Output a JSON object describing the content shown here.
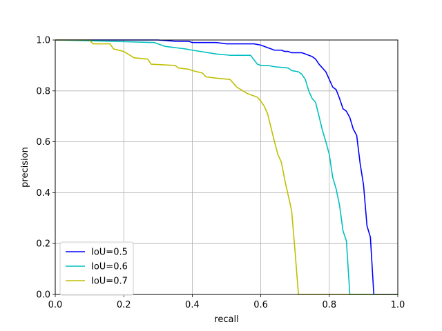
{
  "chart_data": {
    "type": "line",
    "title": "",
    "xlabel": "recall",
    "ylabel": "precision",
    "xlim": [
      0.0,
      1.0
    ],
    "ylim": [
      0.0,
      1.0
    ],
    "xticks": [
      "0.0",
      "0.2",
      "0.4",
      "0.6",
      "0.8",
      "1.0"
    ],
    "yticks": [
      "0.0",
      "0.2",
      "0.4",
      "0.6",
      "0.8",
      "1.0"
    ],
    "grid": true,
    "legend_position": "lower-left",
    "series": [
      {
        "name": "IoU=0.5",
        "color": "#0000ff",
        "x": [
          0.0,
          0.3,
          0.35,
          0.39,
          0.4,
          0.47,
          0.5,
          0.58,
          0.6,
          0.61,
          0.62,
          0.63,
          0.64,
          0.65,
          0.66,
          0.67,
          0.68,
          0.69,
          0.7,
          0.71,
          0.72,
          0.73,
          0.74,
          0.75,
          0.76,
          0.77,
          0.78,
          0.79,
          0.8,
          0.81,
          0.82,
          0.83,
          0.84,
          0.85,
          0.86,
          0.87,
          0.88,
          0.89,
          0.9,
          0.91,
          0.92,
          0.93,
          0.935,
          0.94,
          1.0
        ],
        "y": [
          1.0,
          1.0,
          0.995,
          0.995,
          0.99,
          0.99,
          0.985,
          0.985,
          0.98,
          0.975,
          0.97,
          0.965,
          0.96,
          0.96,
          0.96,
          0.955,
          0.955,
          0.95,
          0.95,
          0.95,
          0.95,
          0.945,
          0.94,
          0.935,
          0.925,
          0.905,
          0.89,
          0.875,
          0.845,
          0.815,
          0.805,
          0.77,
          0.73,
          0.72,
          0.695,
          0.65,
          0.625,
          0.515,
          0.43,
          0.27,
          0.225,
          0.0,
          0.0,
          0.0,
          0.0
        ]
      },
      {
        "name": "IoU=0.6",
        "color": "#00bfbf",
        "x": [
          0.0,
          0.16,
          0.29,
          0.32,
          0.35,
          0.38,
          0.4,
          0.47,
          0.51,
          0.57,
          0.59,
          0.6,
          0.62,
          0.64,
          0.68,
          0.69,
          0.71,
          0.72,
          0.73,
          0.74,
          0.75,
          0.76,
          0.77,
          0.78,
          0.79,
          0.8,
          0.81,
          0.82,
          0.83,
          0.84,
          0.85,
          0.86,
          0.87,
          1.0
        ],
        "y": [
          1.0,
          0.995,
          0.99,
          0.975,
          0.97,
          0.965,
          0.96,
          0.945,
          0.94,
          0.94,
          0.905,
          0.9,
          0.9,
          0.895,
          0.89,
          0.88,
          0.875,
          0.865,
          0.845,
          0.8,
          0.77,
          0.755,
          0.7,
          0.645,
          0.6,
          0.55,
          0.46,
          0.415,
          0.35,
          0.25,
          0.21,
          0.0,
          0.0,
          0.0
        ]
      },
      {
        "name": "IoU=0.7",
        "color": "#bfbf00",
        "x": [
          0.0,
          0.1,
          0.11,
          0.16,
          0.17,
          0.2,
          0.23,
          0.27,
          0.28,
          0.35,
          0.36,
          0.39,
          0.4,
          0.43,
          0.44,
          0.47,
          0.51,
          0.53,
          0.56,
          0.58,
          0.59,
          0.6,
          0.61,
          0.62,
          0.63,
          0.64,
          0.65,
          0.66,
          0.67,
          0.68,
          0.69,
          0.7,
          0.71,
          0.72,
          1.0
        ],
        "y": [
          1.0,
          1.0,
          0.985,
          0.985,
          0.965,
          0.955,
          0.93,
          0.925,
          0.905,
          0.9,
          0.89,
          0.885,
          0.88,
          0.87,
          0.855,
          0.85,
          0.845,
          0.815,
          0.79,
          0.78,
          0.775,
          0.76,
          0.74,
          0.71,
          0.655,
          0.6,
          0.55,
          0.52,
          0.45,
          0.39,
          0.33,
          0.17,
          0.0,
          0.0,
          0.0
        ]
      }
    ]
  }
}
